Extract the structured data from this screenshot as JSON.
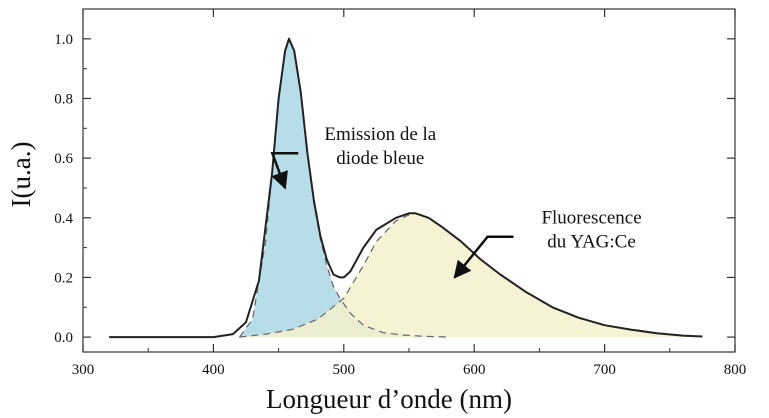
{
  "chart_data": {
    "type": "line",
    "xlabel": "Longueur d’onde (nm)",
    "ylabel": "I(u.a.)",
    "xlim": [
      300,
      800
    ],
    "ylim": [
      -0.05,
      1.1
    ],
    "x_ticks": [
      "300",
      "400",
      "500",
      "600",
      "700",
      "800"
    ],
    "y_ticks": [
      "0.0",
      "0.2",
      "0.4",
      "0.6",
      "0.8",
      "1.0"
    ],
    "grid": false,
    "series": [
      {
        "role": "total spectrum",
        "color": "#222222",
        "x": [
          320,
          400,
          415,
          425,
          435,
          445,
          450,
          455,
          458,
          462,
          467,
          472,
          477,
          482,
          487,
          492,
          497,
          500,
          505,
          515,
          525,
          540,
          550,
          555,
          565,
          575,
          590,
          605,
          620,
          640,
          660,
          680,
          700,
          720,
          740,
          760,
          775
        ],
        "y": [
          0.0,
          0.0,
          0.01,
          0.05,
          0.19,
          0.55,
          0.8,
          0.96,
          1.0,
          0.96,
          0.82,
          0.62,
          0.46,
          0.34,
          0.26,
          0.21,
          0.2,
          0.2,
          0.22,
          0.3,
          0.36,
          0.4,
          0.415,
          0.415,
          0.4,
          0.37,
          0.32,
          0.26,
          0.21,
          0.15,
          0.1,
          0.065,
          0.04,
          0.025,
          0.013,
          0.005,
          0.002
        ]
      },
      {
        "role": "blue diode component",
        "color": "#9fd3e0",
        "x": [
          420,
          430,
          440,
          445,
          450,
          455,
          458,
          462,
          467,
          472,
          477,
          482,
          487,
          492,
          497,
          505,
          515,
          530,
          545,
          560,
          580
        ],
        "y": [
          0.0,
          0.06,
          0.32,
          0.55,
          0.8,
          0.96,
          1.0,
          0.96,
          0.82,
          0.62,
          0.45,
          0.33,
          0.24,
          0.17,
          0.13,
          0.08,
          0.04,
          0.015,
          0.007,
          0.003,
          0.0
        ]
      },
      {
        "role": "YAG:Ce component",
        "color": "#f5f0cc",
        "x": [
          420,
          440,
          460,
          480,
          500,
          515,
          525,
          540,
          550,
          555,
          565,
          575,
          590,
          605,
          620,
          640,
          660,
          680,
          700,
          720,
          740,
          760,
          775
        ],
        "y": [
          0.0,
          0.01,
          0.025,
          0.06,
          0.13,
          0.24,
          0.32,
          0.39,
          0.41,
          0.415,
          0.4,
          0.37,
          0.32,
          0.26,
          0.21,
          0.15,
          0.1,
          0.065,
          0.04,
          0.025,
          0.013,
          0.005,
          0.002
        ]
      }
    ],
    "annotations": [
      {
        "lines": [
          "Emission de la",
          "diode bleue"
        ],
        "text_at": [
          528,
          0.66
        ],
        "arrow_to": [
          455,
          0.5
        ]
      },
      {
        "lines": [
          "Fluorescence",
          "du YAG:Ce"
        ],
        "text_at": [
          690,
          0.38
        ],
        "arrow_to": [
          585,
          0.2
        ]
      }
    ]
  }
}
